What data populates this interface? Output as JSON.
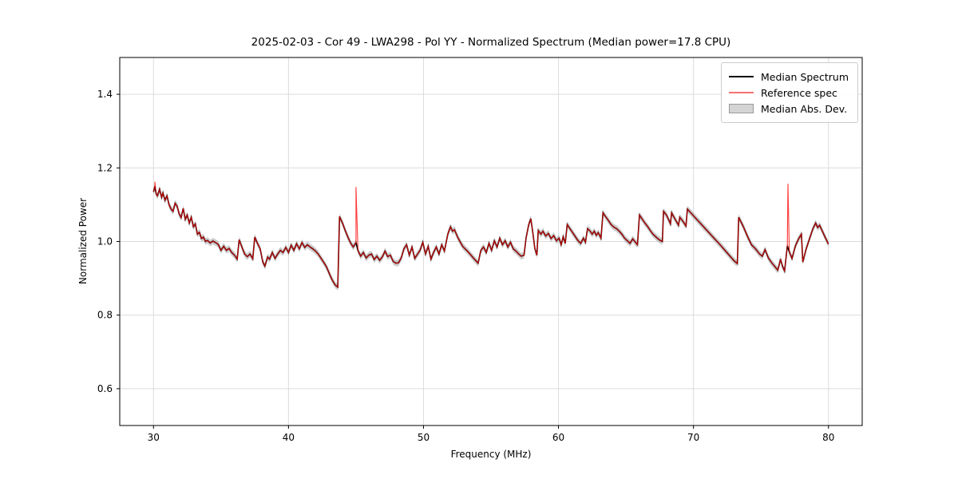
{
  "chart_data": {
    "type": "line",
    "title": "2025-02-03 - Cor 49 - LWA298 - Pol YY - Normalized Spectrum (Median power=17.8 CPU)",
    "xlabel": "Frequency (MHz)",
    "ylabel": "Normalized Power",
    "xlim": [
      27.5,
      82.5
    ],
    "ylim": [
      0.5,
      1.5
    ],
    "xticks": [
      30,
      40,
      50,
      60,
      70,
      80
    ],
    "yticks": [
      0.6,
      0.8,
      1.0,
      1.2,
      1.4
    ],
    "grid": true,
    "grid_color": "#dcdcdc",
    "legend_position": "upper right",
    "series": [
      {
        "name": "Median Spectrum",
        "type": "line",
        "color": "#000000",
        "linewidth": 1.6,
        "points": [
          [
            30.0,
            1.135
          ],
          [
            30.1,
            1.15
          ],
          [
            30.2,
            1.128
          ],
          [
            30.3,
            1.124
          ],
          [
            30.45,
            1.142
          ],
          [
            30.6,
            1.12
          ],
          [
            30.7,
            1.132
          ],
          [
            30.85,
            1.112
          ],
          [
            31.0,
            1.124
          ],
          [
            31.15,
            1.1
          ],
          [
            31.3,
            1.088
          ],
          [
            31.45,
            1.082
          ],
          [
            31.6,
            1.104
          ],
          [
            31.75,
            1.096
          ],
          [
            31.9,
            1.075
          ],
          [
            32.05,
            1.065
          ],
          [
            32.2,
            1.09
          ],
          [
            32.35,
            1.06
          ],
          [
            32.5,
            1.072
          ],
          [
            32.65,
            1.05
          ],
          [
            32.8,
            1.066
          ],
          [
            32.95,
            1.04
          ],
          [
            33.1,
            1.048
          ],
          [
            33.25,
            1.02
          ],
          [
            33.4,
            1.025
          ],
          [
            33.55,
            1.008
          ],
          [
            33.7,
            1.012
          ],
          [
            33.85,
            1.0
          ],
          [
            34.0,
            1.003
          ],
          [
            34.2,
            0.996
          ],
          [
            34.4,
            1.001
          ],
          [
            34.6,
            0.997
          ],
          [
            34.8,
            0.992
          ],
          [
            35.0,
            0.976
          ],
          [
            35.2,
            0.987
          ],
          [
            35.4,
            0.976
          ],
          [
            35.6,
            0.981
          ],
          [
            35.8,
            0.97
          ],
          [
            36.0,
            0.963
          ],
          [
            36.2,
            0.952
          ],
          [
            36.35,
            1.005
          ],
          [
            36.55,
            0.985
          ],
          [
            36.75,
            0.966
          ],
          [
            36.95,
            0.959
          ],
          [
            37.15,
            0.966
          ],
          [
            37.35,
            0.953
          ],
          [
            37.5,
            1.012
          ],
          [
            37.7,
            0.995
          ],
          [
            37.9,
            0.98
          ],
          [
            38.1,
            0.944
          ],
          [
            38.25,
            0.933
          ],
          [
            38.45,
            0.958
          ],
          [
            38.6,
            0.952
          ],
          [
            38.8,
            0.97
          ],
          [
            39.0,
            0.954
          ],
          [
            39.2,
            0.966
          ],
          [
            39.4,
            0.976
          ],
          [
            39.6,
            0.97
          ],
          [
            39.8,
            0.984
          ],
          [
            40.0,
            0.97
          ],
          [
            40.2,
            0.99
          ],
          [
            40.4,
            0.976
          ],
          [
            40.6,
            0.994
          ],
          [
            40.8,
            0.98
          ],
          [
            41.0,
            0.997
          ],
          [
            41.2,
            0.984
          ],
          [
            41.4,
            0.991
          ],
          [
            41.6,
            0.985
          ],
          [
            41.8,
            0.98
          ],
          [
            42.0,
            0.974
          ],
          [
            42.2,
            0.966
          ],
          [
            42.4,
            0.955
          ],
          [
            42.6,
            0.944
          ],
          [
            42.8,
            0.932
          ],
          [
            43.0,
            0.915
          ],
          [
            43.2,
            0.898
          ],
          [
            43.45,
            0.882
          ],
          [
            43.65,
            0.876
          ],
          [
            43.78,
            1.068
          ],
          [
            44.0,
            1.05
          ],
          [
            44.2,
            1.03
          ],
          [
            44.4,
            1.012
          ],
          [
            44.6,
            0.996
          ],
          [
            44.8,
            0.985
          ],
          [
            45.0,
            0.997
          ],
          [
            45.15,
            0.975
          ],
          [
            45.35,
            0.96
          ],
          [
            45.55,
            0.97
          ],
          [
            45.75,
            0.955
          ],
          [
            45.95,
            0.963
          ],
          [
            46.15,
            0.966
          ],
          [
            46.35,
            0.951
          ],
          [
            46.55,
            0.96
          ],
          [
            46.75,
            0.949
          ],
          [
            46.95,
            0.958
          ],
          [
            47.15,
            0.974
          ],
          [
            47.35,
            0.959
          ],
          [
            47.55,
            0.963
          ],
          [
            47.75,
            0.946
          ],
          [
            47.95,
            0.941
          ],
          [
            48.15,
            0.942
          ],
          [
            48.35,
            0.955
          ],
          [
            48.55,
            0.98
          ],
          [
            48.75,
            0.991
          ],
          [
            48.95,
            0.963
          ],
          [
            49.15,
            0.985
          ],
          [
            49.35,
            0.954
          ],
          [
            49.55,
            0.965
          ],
          [
            49.75,
            0.976
          ],
          [
            49.95,
            0.998
          ],
          [
            50.15,
            0.966
          ],
          [
            50.35,
            0.987
          ],
          [
            50.55,
            0.952
          ],
          [
            50.75,
            0.97
          ],
          [
            50.95,
            0.985
          ],
          [
            51.15,
            0.966
          ],
          [
            51.35,
            0.991
          ],
          [
            51.55,
            0.974
          ],
          [
            51.8,
            1.02
          ],
          [
            52.0,
            1.04
          ],
          [
            52.15,
            1.028
          ],
          [
            52.3,
            1.032
          ],
          [
            52.55,
            1.01
          ],
          [
            52.9,
            0.987
          ],
          [
            53.3,
            0.972
          ],
          [
            53.7,
            0.955
          ],
          [
            54.05,
            0.941
          ],
          [
            54.25,
            0.976
          ],
          [
            54.45,
            0.985
          ],
          [
            54.65,
            0.97
          ],
          [
            54.85,
            0.995
          ],
          [
            55.05,
            0.976
          ],
          [
            55.25,
            1.002
          ],
          [
            55.45,
            0.985
          ],
          [
            55.65,
            1.009
          ],
          [
            55.85,
            0.991
          ],
          [
            56.05,
            1.002
          ],
          [
            56.25,
            0.985
          ],
          [
            56.45,
            0.998
          ],
          [
            56.65,
            0.98
          ],
          [
            56.85,
            0.974
          ],
          [
            57.05,
            0.966
          ],
          [
            57.25,
            0.96
          ],
          [
            57.45,
            0.963
          ],
          [
            57.6,
            1.01
          ],
          [
            57.8,
            1.046
          ],
          [
            57.95,
            1.062
          ],
          [
            58.1,
            1.024
          ],
          [
            58.25,
            0.98
          ],
          [
            58.4,
            0.963
          ],
          [
            58.5,
            1.03
          ],
          [
            58.7,
            1.02
          ],
          [
            58.85,
            1.028
          ],
          [
            59.05,
            1.015
          ],
          [
            59.25,
            1.022
          ],
          [
            59.45,
            1.008
          ],
          [
            59.65,
            1.016
          ],
          [
            59.85,
            1.002
          ],
          [
            60.05,
            1.009
          ],
          [
            60.2,
            0.991
          ],
          [
            60.35,
            1.013
          ],
          [
            60.5,
            0.995
          ],
          [
            60.65,
            1.046
          ],
          [
            60.85,
            1.035
          ],
          [
            61.05,
            1.024
          ],
          [
            61.25,
            1.013
          ],
          [
            61.45,
            1.002
          ],
          [
            61.65,
            0.995
          ],
          [
            61.85,
            1.009
          ],
          [
            62.0,
            0.998
          ],
          [
            62.15,
            1.035
          ],
          [
            62.35,
            1.028
          ],
          [
            62.5,
            1.02
          ],
          [
            62.65,
            1.028
          ],
          [
            62.8,
            1.017
          ],
          [
            62.95,
            1.024
          ],
          [
            63.15,
            1.009
          ],
          [
            63.3,
            1.078
          ],
          [
            63.5,
            1.067
          ],
          [
            63.7,
            1.057
          ],
          [
            63.9,
            1.046
          ],
          [
            64.1,
            1.039
          ],
          [
            64.3,
            1.035
          ],
          [
            64.5,
            1.028
          ],
          [
            64.7,
            1.02
          ],
          [
            64.9,
            1.009
          ],
          [
            65.1,
            1.002
          ],
          [
            65.3,
            0.995
          ],
          [
            65.5,
            1.007
          ],
          [
            65.7,
            0.998
          ],
          [
            65.85,
            0.991
          ],
          [
            66.0,
            1.072
          ],
          [
            66.2,
            1.061
          ],
          [
            66.4,
            1.05
          ],
          [
            66.6,
            1.041
          ],
          [
            66.8,
            1.03
          ],
          [
            67.0,
            1.02
          ],
          [
            67.2,
            1.013
          ],
          [
            67.45,
            1.005
          ],
          [
            67.7,
            1.0
          ],
          [
            67.78,
            1.082
          ],
          [
            68.0,
            1.072
          ],
          [
            68.3,
            1.048
          ],
          [
            68.38,
            1.078
          ],
          [
            68.6,
            1.063
          ],
          [
            68.9,
            1.044
          ],
          [
            68.98,
            1.066
          ],
          [
            69.2,
            1.056
          ],
          [
            69.45,
            1.042
          ],
          [
            69.55,
            1.088
          ],
          [
            69.8,
            1.078
          ],
          [
            70.1,
            1.066
          ],
          [
            70.5,
            1.05
          ],
          [
            71.0,
            1.03
          ],
          [
            71.5,
            1.01
          ],
          [
            72.0,
            0.99
          ],
          [
            72.5,
            0.969
          ],
          [
            73.0,
            0.948
          ],
          [
            73.25,
            0.94
          ],
          [
            73.35,
            1.066
          ],
          [
            73.7,
            1.04
          ],
          [
            74.0,
            1.014
          ],
          [
            74.3,
            0.991
          ],
          [
            74.6,
            0.98
          ],
          [
            74.9,
            0.966
          ],
          [
            75.1,
            0.96
          ],
          [
            75.3,
            0.978
          ],
          [
            75.55,
            0.955
          ],
          [
            75.8,
            0.942
          ],
          [
            76.05,
            0.931
          ],
          [
            76.25,
            0.922
          ],
          [
            76.45,
            0.952
          ],
          [
            76.6,
            0.932
          ],
          [
            76.75,
            0.92
          ],
          [
            76.95,
            0.988
          ],
          [
            77.1,
            0.972
          ],
          [
            77.3,
            0.954
          ],
          [
            77.55,
            0.988
          ],
          [
            77.8,
            1.008
          ],
          [
            78.0,
            1.02
          ],
          [
            78.1,
            0.944
          ],
          [
            78.35,
            0.98
          ],
          [
            78.6,
            1.008
          ],
          [
            78.85,
            1.035
          ],
          [
            79.05,
            1.05
          ],
          [
            79.2,
            1.038
          ],
          [
            79.35,
            1.044
          ],
          [
            79.55,
            1.028
          ],
          [
            79.75,
            1.012
          ],
          [
            80.0,
            0.993
          ]
        ]
      },
      {
        "name": "Reference spec",
        "type": "line",
        "color": "#ff0000",
        "opacity": 0.78,
        "linewidth": 1.1,
        "base": "Median Spectrum",
        "spikes": [
          [
            30.1,
            1.162
          ],
          [
            45.0,
            1.148
          ],
          [
            77.0,
            1.157
          ]
        ]
      },
      {
        "name": "Median Abs. Dev.",
        "type": "band",
        "color": "#999999",
        "opacity": 0.5,
        "base": "Median Spectrum",
        "half_width": 0.009
      }
    ]
  }
}
